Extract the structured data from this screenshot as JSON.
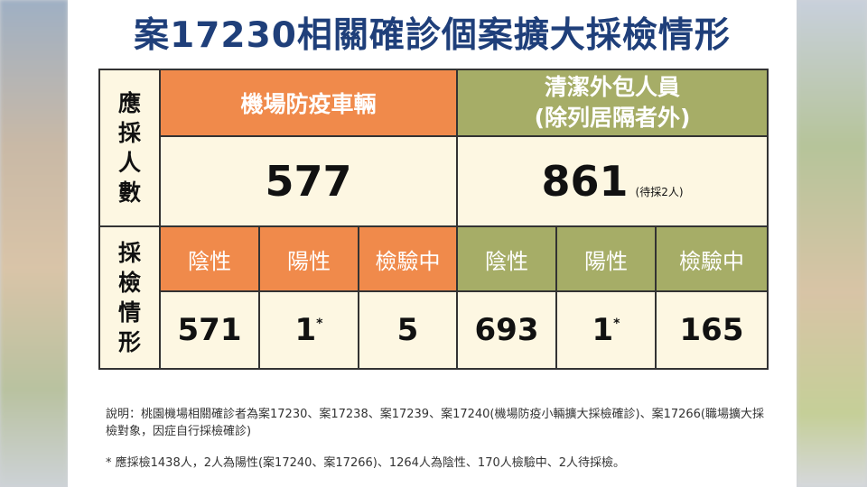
{
  "title": "案17230相關確診個案擴大採檢情形",
  "row_labels": {
    "count": [
      "應",
      "採",
      "人",
      "數"
    ],
    "status": [
      "採",
      "檢",
      "情",
      "形"
    ]
  },
  "groups": [
    {
      "header_line1": "機場防疫車輛",
      "header_line2": "",
      "total": "577",
      "total_note": "",
      "sub_headers": [
        "陰性",
        "陽性",
        "檢驗中"
      ],
      "values": [
        "571",
        "1",
        "5"
      ],
      "positive_mark": "*"
    },
    {
      "header_line1": "清潔外包人員",
      "header_line2": "(除列居隔者外)",
      "total": "861",
      "total_note": "(待採2人)",
      "sub_headers": [
        "陰性",
        "陽性",
        "檢驗中"
      ],
      "values": [
        "693",
        "1",
        "165"
      ],
      "positive_mark": "*"
    }
  ],
  "footnote_1": "說明：桃園機場相關確診者為案17230、案17238、案17239、案17240(機場防疫小輛擴大採檢確診)、案17266(職場擴大採檢對象，因症自行採檢確診)",
  "footnote_2": "* 應採檢1438人，2人為陽性(案17240、案17266)、1264人為陰性、170人檢驗中、2人待採檢。",
  "colors": {
    "title": "#1f3f7a",
    "orange": "#f08a4b",
    "olive": "#a6ad67",
    "cream": "#fdf7e2"
  }
}
